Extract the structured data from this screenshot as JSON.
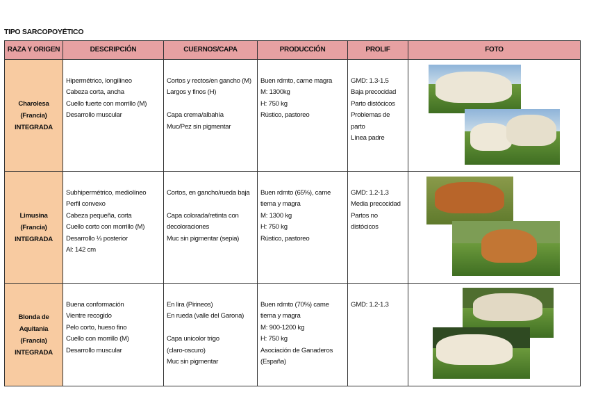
{
  "header": {
    "title": "TIPO SARCOPOYÉTICO"
  },
  "table": {
    "columns": [
      "RAZA Y ORIGEN",
      "DESCRIPCIÓN",
      "CUERNOS/CAPA",
      "PRODUCCIÓN",
      "PROLIF",
      "FOTO"
    ],
    "rows": [
      {
        "breed": [
          "Charolesa",
          "(Francia)",
          "INTEGRADA"
        ],
        "cells": [
          [
            [
              "Hipermétrico, longilíneo",
              "Cabeza corta, ancha",
              "Cuello fuerte con morrillo (M)",
              "Desarrollo muscular"
            ]
          ],
          [
            [
              "Cortos y rectos/en gancho (M)",
              "Largos y finos (H)"
            ],
            [
              "Capa crema/albahía",
              "Muc/Pez sin pigmentar"
            ]
          ],
          [
            [
              "Buen rdmto, carne magra",
              "M: 1300kg",
              "H: 750 kg",
              "Rústico, pastoreo"
            ]
          ],
          [
            [
              "GMD: 1.3-1.5",
              "Baja precocidad",
              "Parto distócicos",
              "Problemas de",
              "parto",
              "Línea padre"
            ]
          ]
        ]
      },
      {
        "breed": [
          "Limusina",
          "(Francia)",
          "INTEGRADA"
        ],
        "cells": [
          [
            [
              "Subhipermétrico, mediolíneo",
              "Perfil convexo",
              "Cabeza pequeña, corta",
              "Cuello corto con morrillo (M)",
              "Desarrollo ⅓ posterior",
              "Al: 142 cm"
            ]
          ],
          [
            [
              "Cortos, en gancho/rueda baja"
            ],
            [
              "Capa colorada/retinta con",
              "decoloraciones",
              "Muc sin pigmentar (sepia)"
            ]
          ],
          [
            [
              "Buen rdmto (65%), came",
              "tiema y magra",
              "M: 1300 kg",
              "H: 750 kg",
              "Rústico, pastoreo"
            ]
          ],
          [
            [
              "GMD: 1.2-1.3",
              "Media precocidad",
              "Partos no",
              "distócicos"
            ]
          ]
        ]
      },
      {
        "breed": [
          "Blonda de",
          "Aquitania",
          "(Francia)",
          "INTEGRADA"
        ],
        "cells": [
          [
            [
              "Buena conformación",
              "Vientre recogido",
              "Pelo corto, hueso fino",
              "Cuello con morrillo (M)",
              "Desarrollo muscular"
            ]
          ],
          [
            [
              "En lira (Pirineos)",
              "En rueda (valle del Garona)"
            ],
            [
              "Capa unicolor trigo",
              "(claro-oscuro)",
              "Muc sin pigmentar"
            ]
          ],
          [
            [
              "Buen rdmto (70%) came",
              "tiema y magra",
              "M: 900-1200 kg",
              "H: 750 kg",
              "Asociación de Ganaderos",
              "(España)"
            ]
          ],
          [
            [
              "GMD: 1.2-1.3"
            ]
          ]
        ]
      }
    ]
  }
}
